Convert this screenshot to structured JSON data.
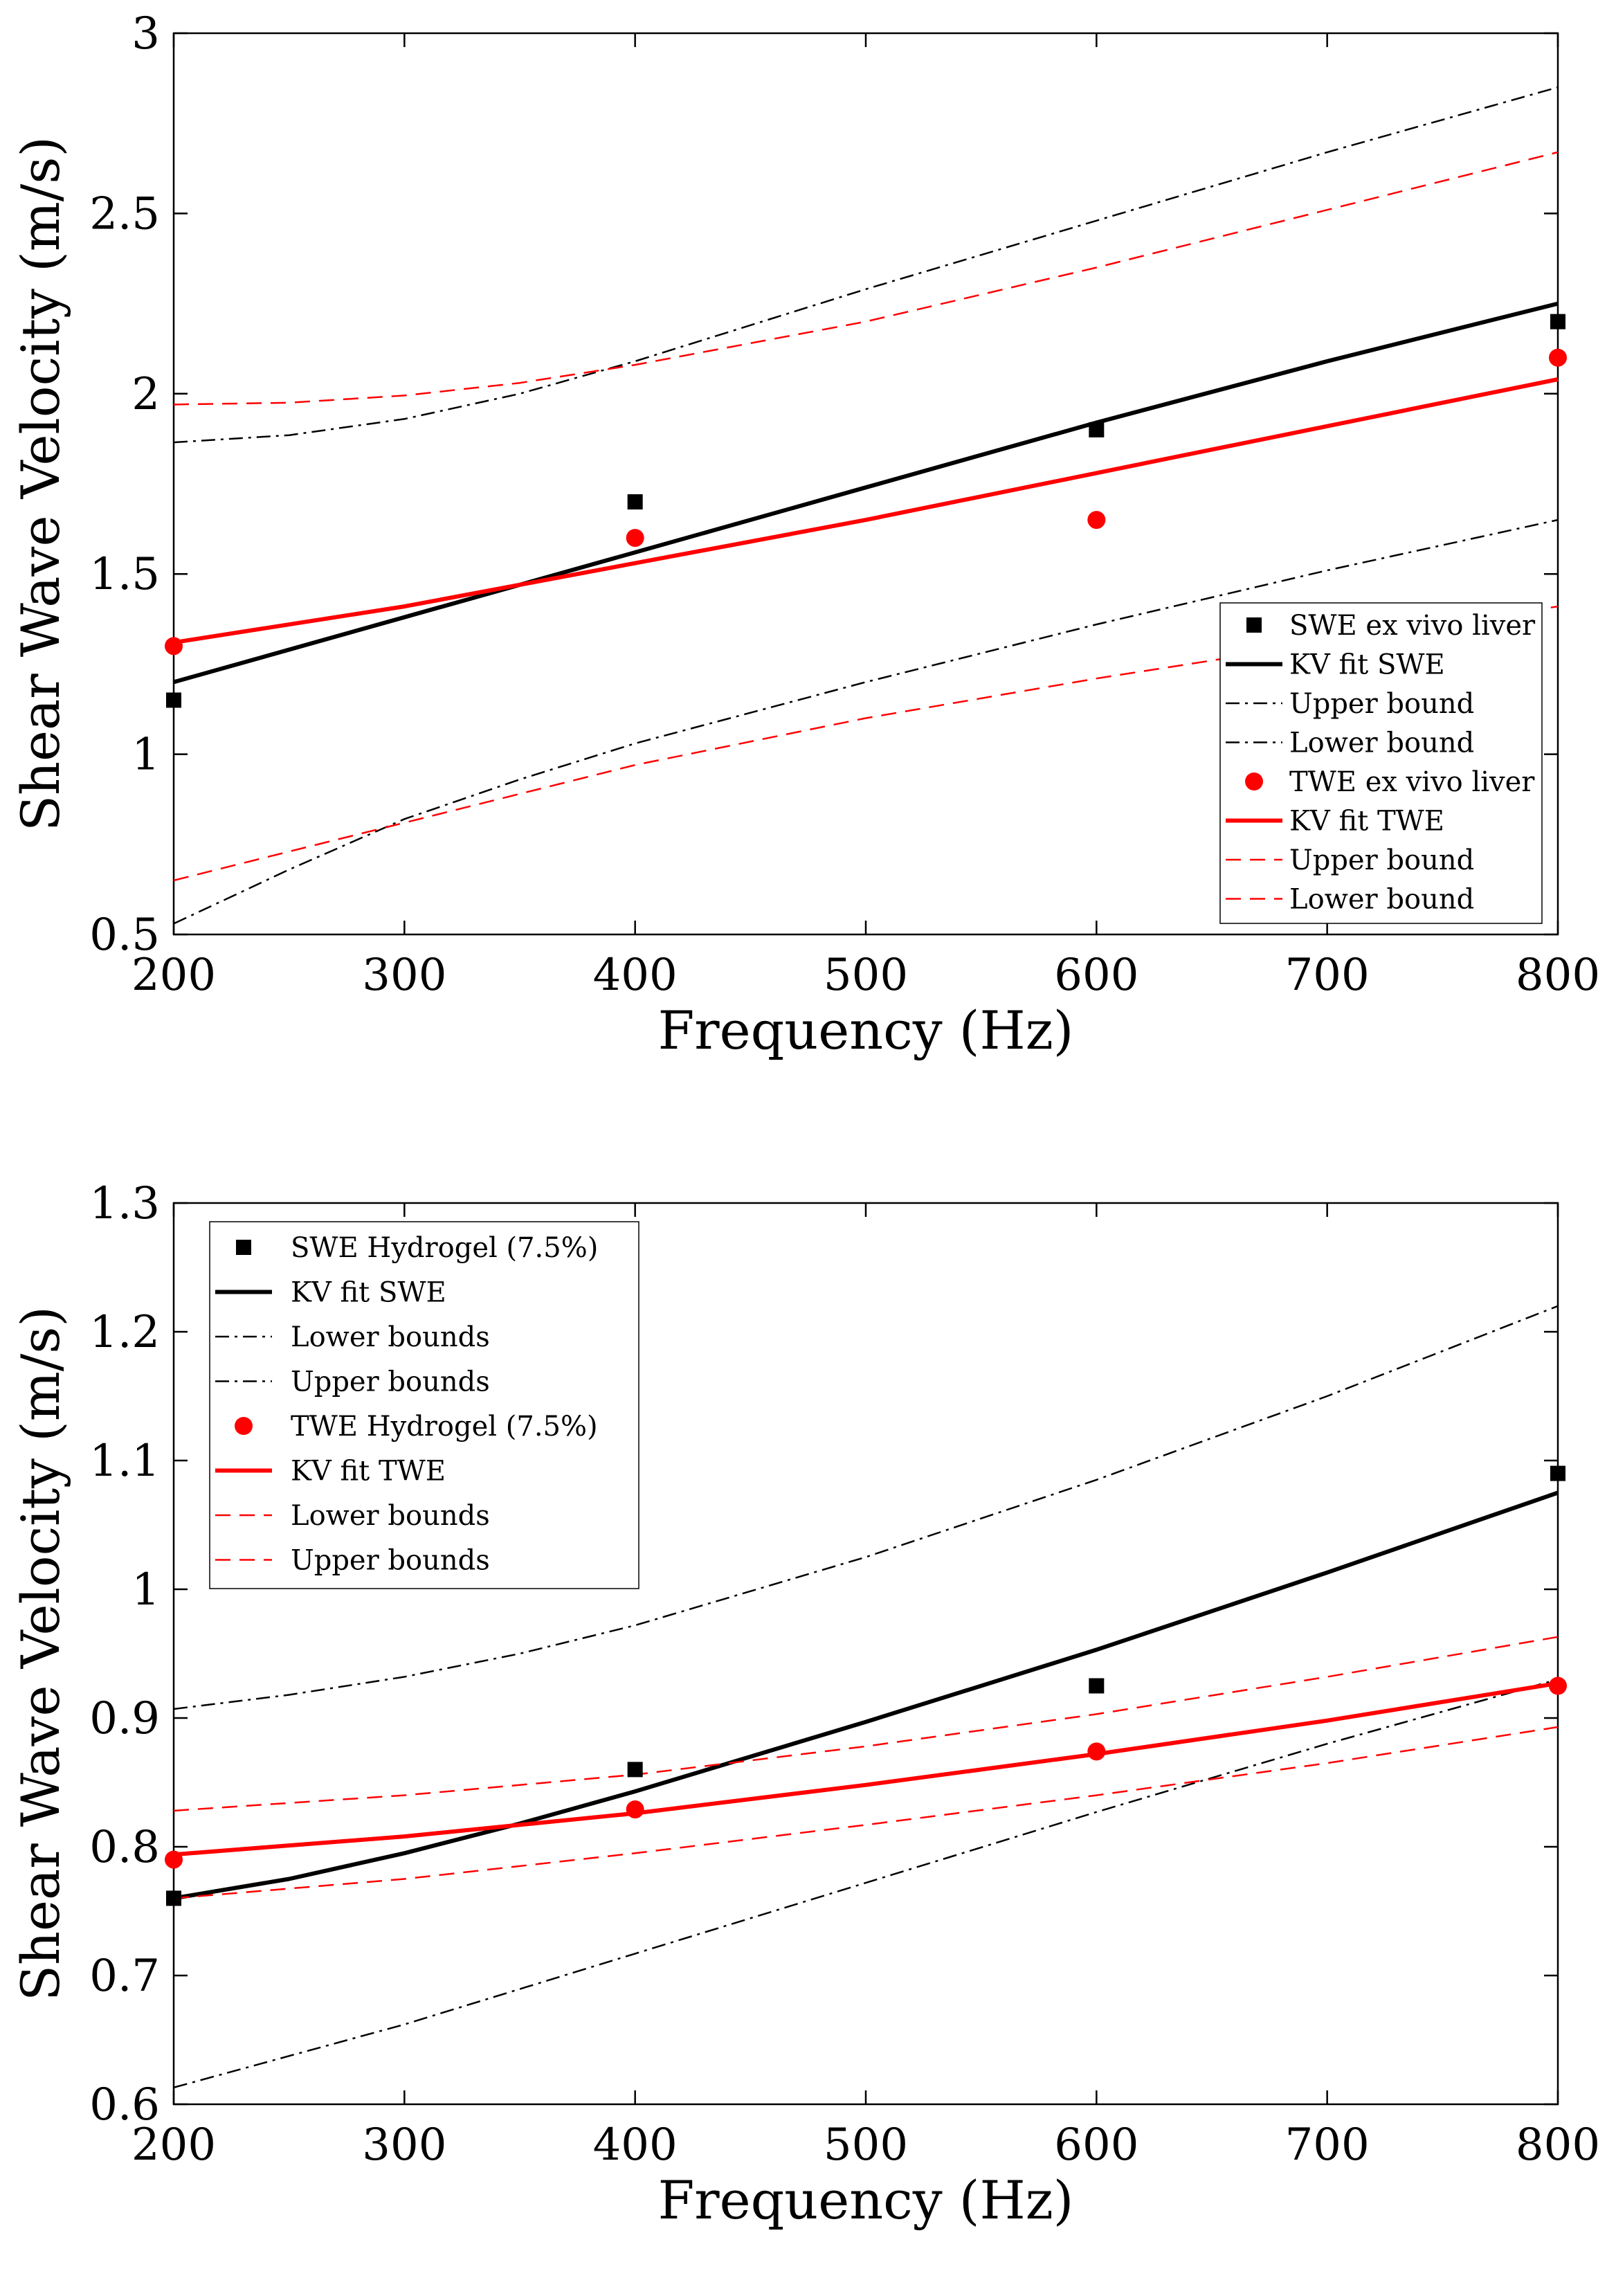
{
  "chart_data": [
    {
      "type": "line",
      "xlabel": "Frequency (Hz)",
      "ylabel": "Shear Wave Velocity (m/s)",
      "xlim": [
        200,
        800
      ],
      "ylim": [
        0.5,
        3
      ],
      "xticks": [
        "200",
        "300",
        "400",
        "500",
        "600",
        "700",
        "800"
      ],
      "yticks": [
        "0.5",
        "1",
        "1.5",
        "2",
        "2.5",
        "3"
      ],
      "legend_position": "lower-right",
      "series": [
        {
          "name": "SWE ex vivo liver",
          "kind": "scatter",
          "marker": "square",
          "color": "#000000",
          "x": [
            200,
            400,
            600,
            800
          ],
          "y": [
            1.15,
            1.7,
            1.9,
            2.2
          ]
        },
        {
          "name": "KV fit SWE",
          "kind": "line",
          "style": "solid",
          "color": "#000000",
          "x": [
            200,
            300,
            400,
            500,
            600,
            700,
            800
          ],
          "y": [
            1.2,
            1.38,
            1.56,
            1.74,
            1.92,
            2.09,
            2.25
          ]
        },
        {
          "name": "Upper bound",
          "kind": "line",
          "style": "dashdot",
          "color": "#000000",
          "x": [
            200,
            250,
            300,
            350,
            400,
            500,
            600,
            700,
            800
          ],
          "y": [
            1.865,
            1.885,
            1.93,
            2.0,
            2.09,
            2.29,
            2.48,
            2.67,
            2.85
          ]
        },
        {
          "name": "Lower bound",
          "kind": "line",
          "style": "dashdot",
          "color": "#000000",
          "x": [
            200,
            250,
            300,
            350,
            400,
            500,
            600,
            700,
            800
          ],
          "y": [
            0.53,
            0.68,
            0.82,
            0.93,
            1.03,
            1.2,
            1.36,
            1.51,
            1.65
          ]
        },
        {
          "name": "TWE ex vivo liver",
          "kind": "scatter",
          "marker": "circle",
          "color": "#ff0000",
          "x": [
            200,
            400,
            600,
            800
          ],
          "y": [
            1.3,
            1.6,
            1.65,
            2.1
          ]
        },
        {
          "name": "KV fit TWE",
          "kind": "line",
          "style": "solid",
          "color": "#ff0000",
          "x": [
            200,
            300,
            400,
            500,
            600,
            700,
            800
          ],
          "y": [
            1.31,
            1.41,
            1.53,
            1.65,
            1.78,
            1.91,
            2.04
          ]
        },
        {
          "name": "Upper bound",
          "kind": "line",
          "style": "dashed",
          "color": "#ff0000",
          "x": [
            200,
            250,
            300,
            350,
            400,
            500,
            600,
            700,
            800
          ],
          "y": [
            1.97,
            1.975,
            1.995,
            2.03,
            2.08,
            2.2,
            2.35,
            2.51,
            2.67
          ]
        },
        {
          "name": "Lower bound",
          "kind": "line",
          "style": "dashed",
          "color": "#ff0000",
          "x": [
            200,
            300,
            400,
            500,
            600,
            700,
            800
          ],
          "y": [
            0.65,
            0.81,
            0.97,
            1.1,
            1.21,
            1.31,
            1.41
          ]
        }
      ]
    },
    {
      "type": "line",
      "xlabel": "Frequency (Hz)",
      "ylabel": "Shear Wave Velocity (m/s)",
      "xlim": [
        200,
        800
      ],
      "ylim": [
        0.6,
        1.3
      ],
      "xticks": [
        "200",
        "300",
        "400",
        "500",
        "600",
        "700",
        "800"
      ],
      "yticks": [
        "0.6",
        "0.7",
        "0.8",
        "0.9",
        "1",
        "1.1",
        "1.2",
        "1.3"
      ],
      "legend_position": "upper-left",
      "series": [
        {
          "name": "SWE Hydrogel (7.5%)",
          "kind": "scatter",
          "marker": "square",
          "color": "#000000",
          "x": [
            200,
            400,
            600,
            800
          ],
          "y": [
            0.76,
            0.86,
            0.925,
            1.09
          ]
        },
        {
          "name": "KV fit SWE",
          "kind": "line",
          "style": "solid",
          "color": "#000000",
          "x": [
            200,
            250,
            300,
            350,
            400,
            500,
            600,
            700,
            800
          ],
          "y": [
            0.76,
            0.775,
            0.795,
            0.818,
            0.843,
            0.897,
            0.953,
            1.013,
            1.075
          ]
        },
        {
          "name": "Lower bounds",
          "kind": "line",
          "style": "dashdot",
          "color": "#000000",
          "x": [
            200,
            300,
            400,
            500,
            600,
            700,
            800
          ],
          "y": [
            0.613,
            0.662,
            0.717,
            0.772,
            0.827,
            0.88,
            0.93
          ]
        },
        {
          "name": "Upper bounds",
          "kind": "line",
          "style": "dashdot",
          "color": "#000000",
          "x": [
            200,
            250,
            300,
            350,
            400,
            500,
            600,
            700,
            800
          ],
          "y": [
            0.907,
            0.918,
            0.932,
            0.95,
            0.972,
            1.025,
            1.085,
            1.15,
            1.22
          ]
        },
        {
          "name": "TWE Hydrogel (7.5%)",
          "kind": "scatter",
          "marker": "circle",
          "color": "#ff0000",
          "x": [
            200,
            400,
            600,
            800
          ],
          "y": [
            0.79,
            0.829,
            0.874,
            0.925
          ]
        },
        {
          "name": "KV fit TWE",
          "kind": "line",
          "style": "solid",
          "color": "#ff0000",
          "x": [
            200,
            300,
            400,
            500,
            600,
            700,
            800
          ],
          "y": [
            0.794,
            0.808,
            0.826,
            0.848,
            0.872,
            0.898,
            0.927
          ]
        },
        {
          "name": "Lower bounds",
          "kind": "line",
          "style": "dashed",
          "color": "#ff0000",
          "x": [
            200,
            300,
            400,
            500,
            600,
            700,
            800
          ],
          "y": [
            0.76,
            0.775,
            0.795,
            0.817,
            0.84,
            0.865,
            0.893
          ]
        },
        {
          "name": "Upper bounds",
          "kind": "line",
          "style": "dashed",
          "color": "#ff0000",
          "x": [
            200,
            300,
            400,
            500,
            600,
            700,
            800
          ],
          "y": [
            0.828,
            0.84,
            0.856,
            0.878,
            0.903,
            0.932,
            0.963
          ]
        }
      ]
    }
  ]
}
